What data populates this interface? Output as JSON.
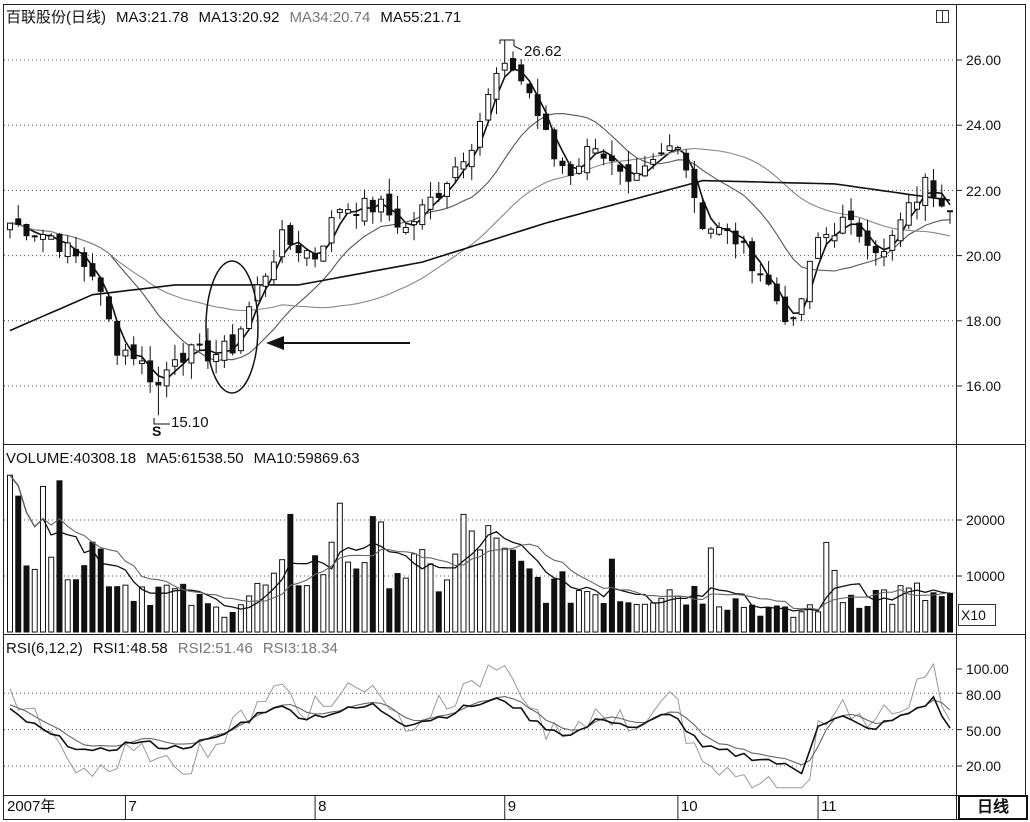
{
  "stock": {
    "name": "百联股份(日线)"
  },
  "price_panel": {
    "indicators": [
      {
        "label": "MA3:21.78",
        "color": "#111111"
      },
      {
        "label": "MA13:20.92",
        "color": "#111111"
      },
      {
        "label": "MA34:20.74",
        "color": "#777777"
      },
      {
        "label": "MA55:21.71",
        "color": "#111111"
      }
    ],
    "y_ticks": [
      "26.00",
      "24.00",
      "22.00",
      "20.00",
      "18.00",
      "16.00"
    ],
    "high_label": "26.62",
    "low_label": "15.10",
    "low_marker": "S"
  },
  "volume_panel": {
    "indicators": [
      {
        "label": "VOLUME:40308.18",
        "color": "#111111"
      },
      {
        "label": "MA5:61538.50",
        "color": "#111111"
      },
      {
        "label": "MA10:59869.63",
        "color": "#111111"
      }
    ],
    "y_ticks": [
      "20000",
      "10000"
    ],
    "scale_label": "X10"
  },
  "rsi_panel": {
    "indicators": [
      {
        "label": "RSI(6,12,2)",
        "color": "#111111"
      },
      {
        "label": "RSI1:48.58",
        "color": "#111111"
      },
      {
        "label": "RSI2:51.46",
        "color": "#777777"
      },
      {
        "label": "RSI3:18.34",
        "color": "#888888"
      }
    ],
    "y_ticks": [
      "100.00",
      "80.00",
      "50.00",
      "20.00"
    ]
  },
  "date_axis": {
    "labels": [
      {
        "text": "2007年",
        "index": 0
      },
      {
        "text": "7",
        "index": 14
      },
      {
        "text": "8",
        "index": 37
      },
      {
        "text": "9",
        "index": 60
      },
      {
        "text": "10",
        "index": 81
      },
      {
        "text": "11",
        "index": 98
      }
    ]
  },
  "period_button": "日线",
  "chart_data": {
    "type": "candlestick",
    "count": 115,
    "price_ylim": [
      14.5,
      27.5
    ],
    "volume_ylim": [
      0,
      30000
    ],
    "rsi_ylim": [
      0,
      110
    ],
    "price_anchors": [
      [
        0,
        21.0
      ],
      [
        5,
        20.6
      ],
      [
        10,
        19.5
      ],
      [
        13,
        17.2
      ],
      [
        15,
        17.0
      ],
      [
        18,
        16.0
      ],
      [
        20,
        17.0
      ],
      [
        25,
        17.0
      ],
      [
        27,
        17.2
      ],
      [
        30,
        19.0
      ],
      [
        33,
        20.5
      ],
      [
        37,
        20.0
      ],
      [
        40,
        21.5
      ],
      [
        45,
        21.5
      ],
      [
        48,
        20.8
      ],
      [
        52,
        22.0
      ],
      [
        56,
        23.5
      ],
      [
        59,
        25.5
      ],
      [
        60,
        26.2
      ],
      [
        63,
        25.0
      ],
      [
        66,
        23.0
      ],
      [
        68,
        22.6
      ],
      [
        71,
        23.5
      ],
      [
        75,
        22.0
      ],
      [
        78,
        22.8
      ],
      [
        81,
        23.6
      ],
      [
        84,
        21.0
      ],
      [
        88,
        20.5
      ],
      [
        91,
        19.5
      ],
      [
        95,
        17.8
      ],
      [
        98,
        20.5
      ],
      [
        101,
        21.0
      ],
      [
        104,
        20.6
      ],
      [
        106,
        20.0
      ],
      [
        108,
        21.0
      ],
      [
        111,
        22.2
      ],
      [
        114,
        21.6
      ]
    ],
    "extremes": {
      "high": 26.62,
      "high_index": 60,
      "low": 15.1,
      "low_index": 18
    },
    "volume_anchors": [
      [
        0,
        24000
      ],
      [
        5,
        17000
      ],
      [
        10,
        16000
      ],
      [
        14,
        9000
      ],
      [
        18,
        8000
      ],
      [
        22,
        6000
      ],
      [
        25,
        4000
      ],
      [
        28,
        6000
      ],
      [
        32,
        9000
      ],
      [
        36,
        12000
      ],
      [
        40,
        14000
      ],
      [
        44,
        16000
      ],
      [
        48,
        12000
      ],
      [
        52,
        10000
      ],
      [
        56,
        15000
      ],
      [
        59,
        14000
      ],
      [
        62,
        11000
      ],
      [
        66,
        8000
      ],
      [
        70,
        8000
      ],
      [
        75,
        7000
      ],
      [
        80,
        8000
      ],
      [
        85,
        7000
      ],
      [
        90,
        5000
      ],
      [
        95,
        3000
      ],
      [
        100,
        7000
      ],
      [
        105,
        7000
      ],
      [
        110,
        7000
      ],
      [
        114,
        6000
      ]
    ],
    "volume_spikes": [
      [
        0,
        28000
      ],
      [
        4,
        26000
      ],
      [
        6,
        27000
      ],
      [
        34,
        21000
      ],
      [
        40,
        23000
      ],
      [
        55,
        21000
      ],
      [
        58,
        19000
      ],
      [
        73,
        13000
      ],
      [
        85,
        15000
      ],
      [
        99,
        16000
      ],
      [
        100,
        11000
      ]
    ],
    "ma55_anchors": [
      [
        0,
        17.7
      ],
      [
        10,
        18.8
      ],
      [
        20,
        19.1
      ],
      [
        35,
        19.1
      ],
      [
        50,
        19.8
      ],
      [
        65,
        21.0
      ],
      [
        84,
        22.3
      ],
      [
        100,
        22.2
      ],
      [
        114,
        21.7
      ]
    ],
    "rsi_anchors": [
      [
        0,
        65
      ],
      [
        5,
        45
      ],
      [
        10,
        30
      ],
      [
        15,
        40
      ],
      [
        20,
        35
      ],
      [
        25,
        42
      ],
      [
        28,
        55
      ],
      [
        32,
        70
      ],
      [
        36,
        60
      ],
      [
        40,
        65
      ],
      [
        44,
        70
      ],
      [
        48,
        55
      ],
      [
        52,
        60
      ],
      [
        56,
        70
      ],
      [
        60,
        75
      ],
      [
        64,
        55
      ],
      [
        68,
        45
      ],
      [
        72,
        60
      ],
      [
        76,
        50
      ],
      [
        80,
        65
      ],
      [
        84,
        35
      ],
      [
        88,
        30
      ],
      [
        92,
        25
      ],
      [
        96,
        15
      ],
      [
        98,
        55
      ],
      [
        101,
        60
      ],
      [
        104,
        50
      ],
      [
        108,
        60
      ],
      [
        112,
        75
      ],
      [
        114,
        50
      ]
    ]
  }
}
